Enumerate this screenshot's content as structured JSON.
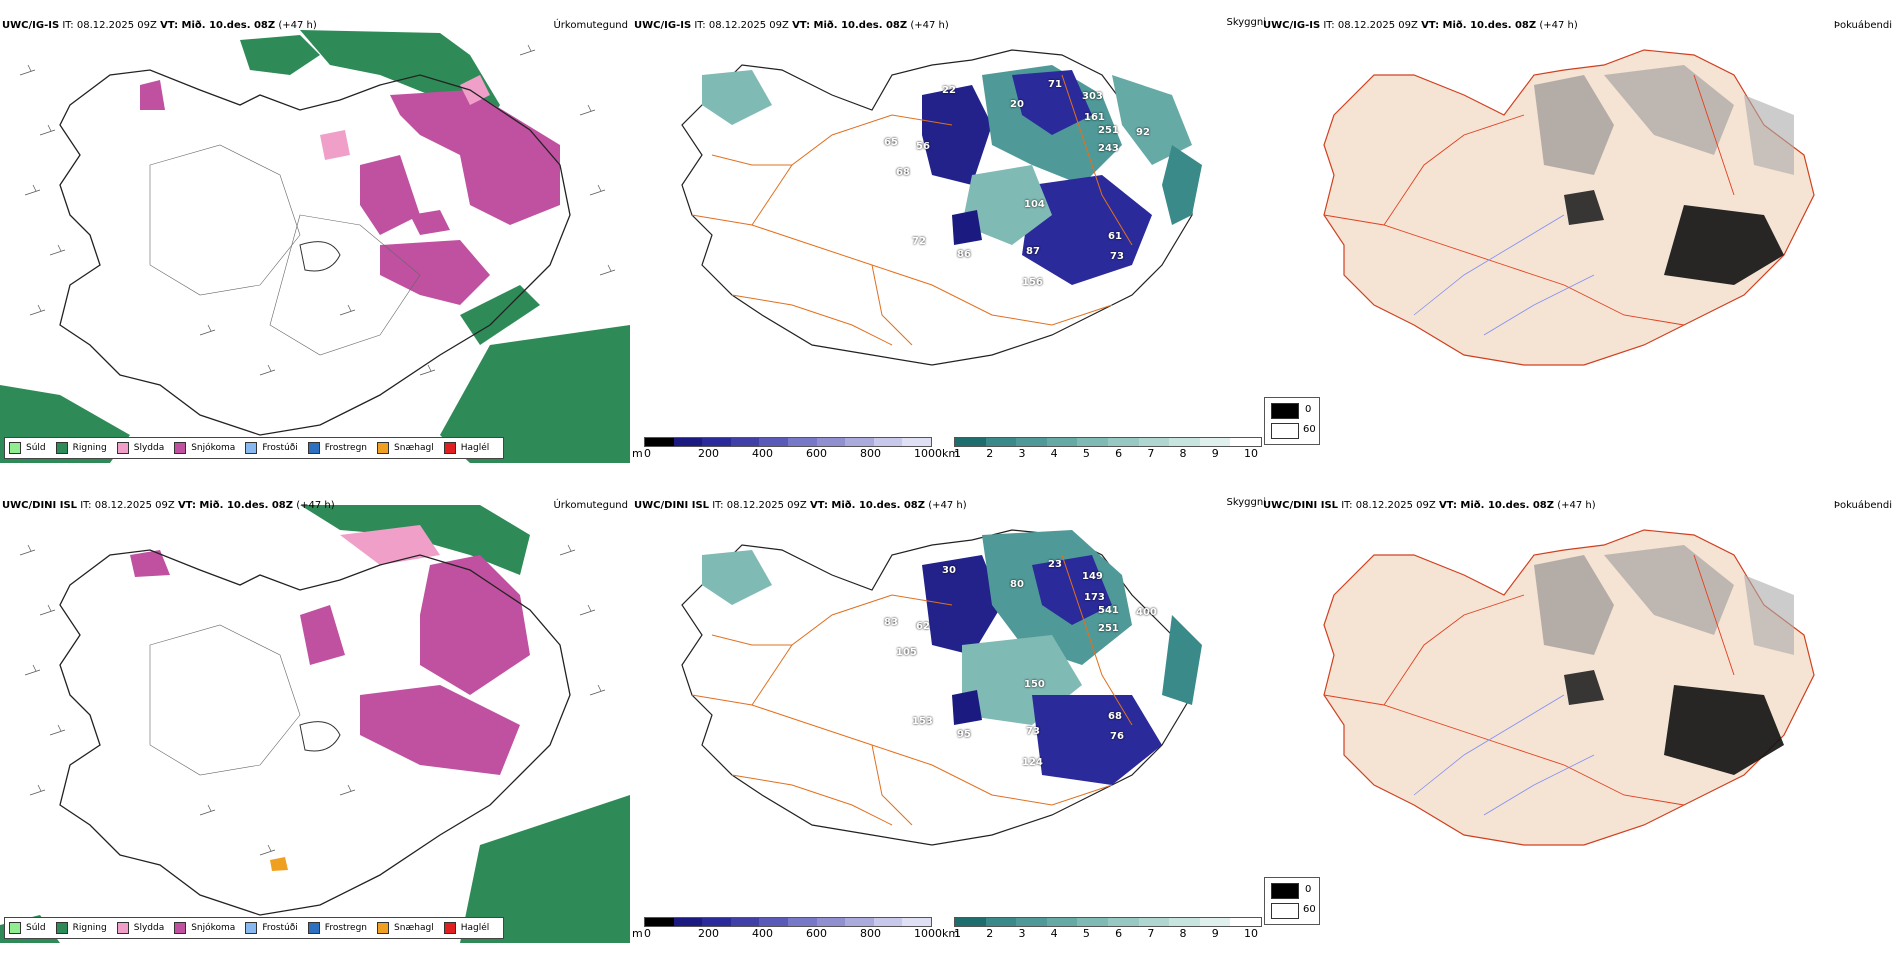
{
  "rows": [
    {
      "model_label": "UWC/IG-IS",
      "it_label": "IT: 08.12.2025 09Z",
      "vt_label": "VT: Mið. 10.des. 08Z",
      "lead_label": "(+47 h)"
    },
    {
      "model_label": "UWC/DINI ISL",
      "it_label": "IT: 08.12.2025 09Z",
      "vt_label": "VT: Mið. 10.des. 08Z",
      "lead_label": "(+47 h)"
    }
  ],
  "panel_titles": {
    "precip": "Úrkomutegund",
    "visibility": "Skyggni",
    "fog": "Þokuábendi"
  },
  "precip_legend": [
    {
      "label": "Súld",
      "color": "#90ee90"
    },
    {
      "label": "Rigning",
      "color": "#2e8b57"
    },
    {
      "label": "Slydda",
      "color": "#f0a0c8"
    },
    {
      "label": "Snjókoma",
      "color": "#c050a0"
    },
    {
      "label": "Frostúði",
      "color": "#87b8f0"
    },
    {
      "label": "Frostregn",
      "color": "#2e70c0"
    },
    {
      "label": "Snæhagl",
      "color": "#f0a020"
    },
    {
      "label": "Haglél",
      "color": "#e02020"
    }
  ],
  "vis_scale_m": {
    "unit": "m",
    "ticks": [
      "0",
      "200",
      "400",
      "600",
      "800",
      "1000"
    ],
    "colors": [
      "#000000",
      "#1a1a80",
      "#2a2a9a",
      "#4040a8",
      "#5a5ab8",
      "#7878c8",
      "#9090d0",
      "#aaaadc",
      "#c8c8ea",
      "#e0e0f5"
    ]
  },
  "vis_scale_km": {
    "unit": "km",
    "ticks": [
      "1",
      "2",
      "3",
      "4",
      "5",
      "6",
      "7",
      "8",
      "9",
      "10"
    ],
    "colors": [
      "#1e6e6e",
      "#3a8a8a",
      "#4f9a98",
      "#66aaa6",
      "#80bab4",
      "#98c8c2",
      "#b0d6d0",
      "#c8e4de",
      "#e0f0ec",
      "#ffffff"
    ]
  },
  "fog_legend": {
    "v0": "0",
    "v60": "60"
  },
  "vis_labels_top": [
    "65",
    "56",
    "68",
    "72",
    "86",
    "87",
    "156",
    "104",
    "61",
    "73",
    "92",
    "251",
    "243",
    "161",
    "303",
    "71",
    "20",
    "22"
  ],
  "vis_labels_bottom": [
    "83",
    "62",
    "105",
    "153",
    "95",
    "73",
    "124",
    "150",
    "68",
    "76",
    "400",
    "541",
    "251",
    "173",
    "149",
    "23",
    "80",
    "30"
  ]
}
